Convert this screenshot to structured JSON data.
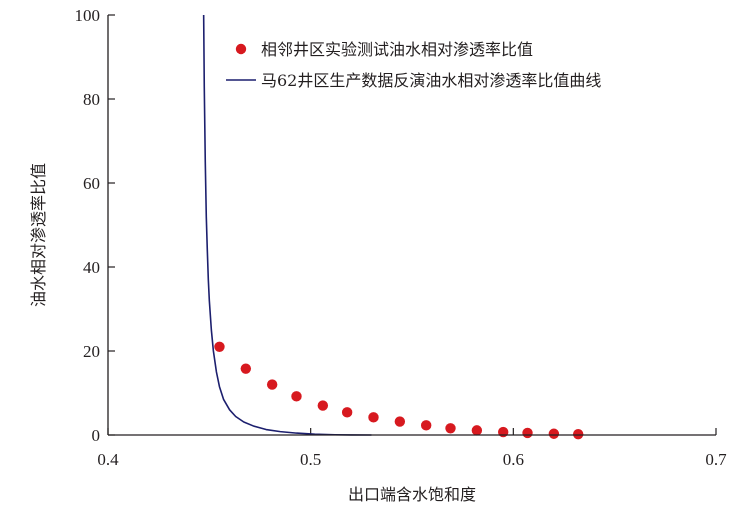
{
  "chart_data": {
    "type": "scatter",
    "xlabel": "出口端含水饱和度",
    "ylabel": "油水相对渗透率比值",
    "xlim": [
      0.4,
      0.7
    ],
    "ylim": [
      0,
      100
    ],
    "x_ticks": [
      "0.4",
      "0.5",
      "0.6",
      "0.7"
    ],
    "y_ticks": [
      "0",
      "20",
      "40",
      "60",
      "80",
      "100"
    ],
    "legend_position": "top-right",
    "grid": false,
    "series": [
      {
        "name": "相邻井区实验测试油水相对渗透率比值",
        "type": "scatter",
        "color": "#d7191f",
        "x": [
          0.455,
          0.468,
          0.481,
          0.493,
          0.506,
          0.518,
          0.531,
          0.544,
          0.557,
          0.569,
          0.582,
          0.595,
          0.607,
          0.62,
          0.632
        ],
        "y": [
          21.0,
          15.8,
          12.0,
          9.2,
          7.0,
          5.4,
          4.2,
          3.2,
          2.3,
          1.6,
          1.1,
          0.7,
          0.5,
          0.3,
          0.2
        ]
      },
      {
        "name": "马62井区生产数据反演油水相对渗透率比值曲线",
        "type": "line",
        "color": "#1c1f6e",
        "x": [
          0.4472,
          0.4475,
          0.448,
          0.4485,
          0.449,
          0.4495,
          0.45,
          0.451,
          0.452,
          0.4535,
          0.455,
          0.457,
          0.46,
          0.463,
          0.467,
          0.472,
          0.478,
          0.485,
          0.493,
          0.502,
          0.512,
          0.52,
          0.53
        ],
        "y": [
          100,
          83,
          65,
          52,
          44,
          37,
          32,
          25,
          20,
          15,
          11.5,
          8.5,
          6,
          4.4,
          3.1,
          2.1,
          1.3,
          0.8,
          0.45,
          0.2,
          0.06,
          0.02,
          0.0
        ]
      }
    ]
  }
}
